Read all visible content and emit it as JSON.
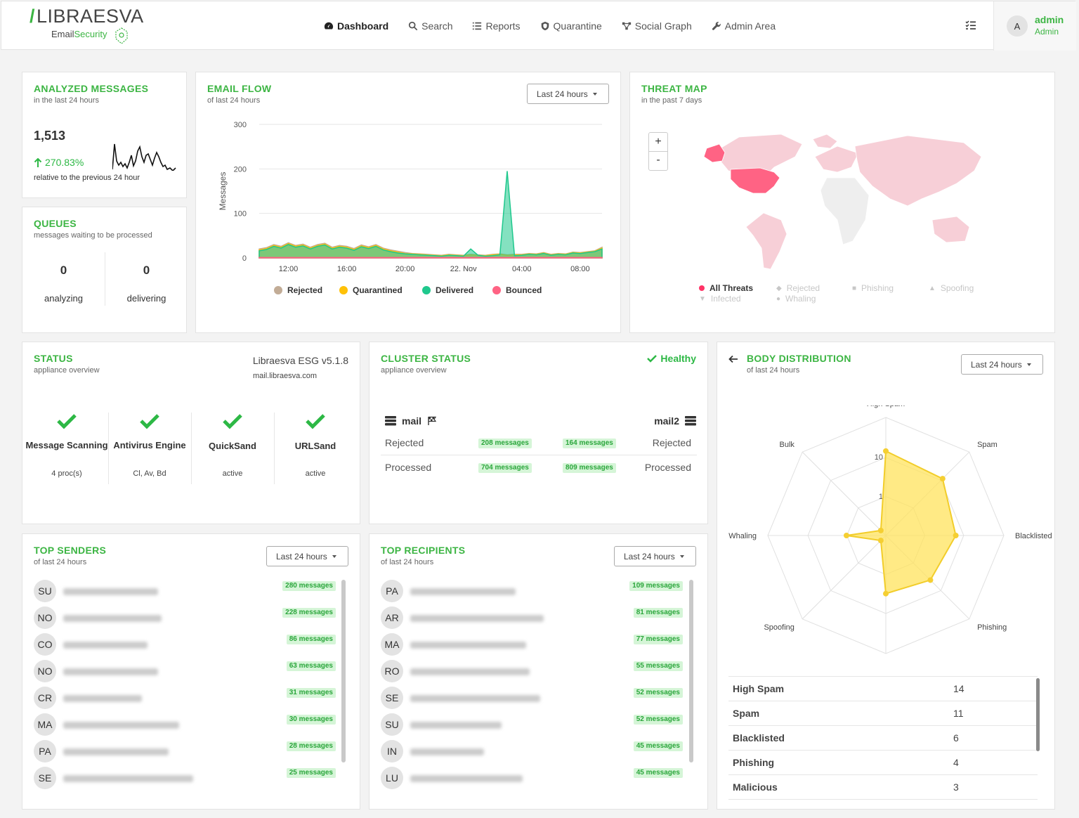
{
  "brand": {
    "name": "LIBRAESVA",
    "sub_a": "Email",
    "sub_b": "Security"
  },
  "nav": [
    {
      "label": "Dashboard",
      "icon": "dashboard-icon",
      "active": true
    },
    {
      "label": "Search",
      "icon": "search-icon"
    },
    {
      "label": "Reports",
      "icon": "list-icon"
    },
    {
      "label": "Quarantine",
      "icon": "shield-icon"
    },
    {
      "label": "Social Graph",
      "icon": "graph-icon"
    },
    {
      "label": "Admin Area",
      "icon": "wrench-icon"
    }
  ],
  "user": {
    "initial": "A",
    "name": "admin",
    "role": "Admin"
  },
  "analyzed": {
    "title": "ANALYZED MESSAGES",
    "subtitle": "in the last 24 hours",
    "count": "1,513",
    "change": "270.83%",
    "relative": "relative to the previous 24 hour"
  },
  "queues": {
    "title": "QUEUES",
    "subtitle": "messages waiting to be processed",
    "analyzing_value": "0",
    "analyzing_label": "analyzing",
    "delivering_value": "0",
    "delivering_label": "delivering"
  },
  "email_flow": {
    "title": "EMAIL FLOW",
    "subtitle": "of last 24 hours",
    "range": "Last 24 hours"
  },
  "chart_data": {
    "type": "area",
    "title": "EMAIL FLOW",
    "ylabel": "Messages",
    "xlabel": "",
    "ylim": [
      0,
      300
    ],
    "yticks": [
      0,
      100,
      200,
      300
    ],
    "xticks": [
      "12:00",
      "16:00",
      "20:00",
      "22. Nov",
      "04:00",
      "08:00"
    ],
    "x": [
      "10:00",
      "10:30",
      "11:00",
      "11:30",
      "12:00",
      "12:30",
      "13:00",
      "13:30",
      "14:00",
      "14:30",
      "15:00",
      "15:30",
      "16:00",
      "16:30",
      "17:00",
      "17:30",
      "18:00",
      "18:30",
      "19:00",
      "19:30",
      "20:00",
      "20:30",
      "21:00",
      "21:30",
      "22:00",
      "22:30",
      "23:00",
      "23:30",
      "00:00",
      "00:30",
      "01:00",
      "01:30",
      "02:00",
      "02:30",
      "03:00",
      "03:30",
      "04:00",
      "04:30",
      "05:00",
      "05:30",
      "06:00",
      "06:30",
      "07:00",
      "07:30",
      "08:00",
      "08:30",
      "09:00",
      "09:30"
    ],
    "series": [
      {
        "name": "Rejected",
        "color": "#c2ac96",
        "values": [
          20,
          23,
          30,
          26,
          34,
          28,
          31,
          24,
          30,
          33,
          24,
          28,
          26,
          21,
          29,
          25,
          30,
          22,
          18,
          15,
          12,
          10,
          9,
          8,
          7,
          6,
          8,
          7,
          6,
          8,
          7,
          6,
          8,
          9,
          7,
          8,
          8,
          10,
          9,
          12,
          8,
          10,
          9,
          13,
          12,
          14,
          16,
          24
        ]
      },
      {
        "name": "Quarantined",
        "color": "#ffc107",
        "values": [
          18,
          21,
          28,
          24,
          32,
          26,
          29,
          22,
          28,
          31,
          22,
          26,
          24,
          19,
          27,
          23,
          28,
          20,
          16,
          13,
          10,
          9,
          8,
          7,
          6,
          5,
          7,
          6,
          5,
          7,
          6,
          5,
          7,
          8,
          6,
          7,
          7,
          9,
          8,
          11,
          7,
          9,
          8,
          12,
          11,
          13,
          15,
          22
        ]
      },
      {
        "name": "Delivered",
        "color": "#1fc88d",
        "values": [
          16,
          19,
          26,
          22,
          30,
          24,
          27,
          20,
          26,
          29,
          20,
          24,
          22,
          17,
          25,
          21,
          26,
          18,
          14,
          11,
          9,
          8,
          7,
          6,
          5,
          4,
          6,
          5,
          4,
          20,
          6,
          4,
          5,
          7,
          195,
          5,
          6,
          8,
          7,
          10,
          6,
          8,
          7,
          11,
          10,
          12,
          14,
          20
        ]
      },
      {
        "name": "Bounced",
        "color": "#ff6384",
        "values": [
          1,
          1,
          1,
          1,
          1,
          1,
          1,
          1,
          1,
          1,
          1,
          1,
          1,
          1,
          1,
          1,
          1,
          1,
          1,
          1,
          1,
          1,
          1,
          1,
          1,
          1,
          1,
          1,
          1,
          1,
          1,
          1,
          1,
          1,
          1,
          1,
          1,
          1,
          1,
          1,
          1,
          1,
          1,
          1,
          1,
          1,
          1,
          1
        ]
      }
    ]
  },
  "threat_map": {
    "title": "THREAT MAP",
    "subtitle": "in the past 7 days",
    "zoom_in": "+",
    "zoom_out": "-",
    "legend": [
      {
        "label": "All Threats",
        "active": true,
        "icon": "circle-icon"
      },
      {
        "label": "Rejected",
        "icon": "diamond-icon"
      },
      {
        "label": "Phishing",
        "icon": "square-icon"
      },
      {
        "label": "Spoofing",
        "icon": "triangle-icon"
      },
      {
        "label": "Infected",
        "icon": "triangle-down-icon"
      },
      {
        "label": "Whaling",
        "icon": "circle-icon"
      }
    ]
  },
  "status": {
    "title": "STATUS",
    "subtitle": "appliance overview",
    "version": "Libraesva ESG v5.1.8",
    "host": "mail.libraesva.com",
    "items": [
      {
        "label": "Message Scanning",
        "value": "4 proc(s)"
      },
      {
        "label": "Antivirus Engine",
        "value": "Cl, Av, Bd"
      },
      {
        "label": "QuickSand",
        "value": "active"
      },
      {
        "label": "URLSand",
        "value": "active"
      }
    ]
  },
  "cluster": {
    "title": "CLUSTER STATUS",
    "subtitle": "appliance overview",
    "health": "Healthy",
    "node1": "mail",
    "node2": "mail2",
    "rows": [
      {
        "label": "Rejected",
        "left": "208 messages",
        "right": "164 messages"
      },
      {
        "label": "Processed",
        "left": "704 messages",
        "right": "809 messages"
      }
    ]
  },
  "body_dist": {
    "title": "BODY DISTRIBUTION",
    "subtitle": "of last 24 hours",
    "range": "Last 24 hours",
    "axes": [
      "High Spam",
      "Spam",
      "Blacklisted",
      "Phishing",
      "Malicious",
      "Spoofing",
      "Whaling",
      "Bulk"
    ],
    "values": [
      14,
      11,
      6,
      4,
      3,
      0,
      1,
      0
    ],
    "scale_labels": [
      "10",
      "1"
    ],
    "table": [
      {
        "label": "High Spam",
        "value": "14"
      },
      {
        "label": "Spam",
        "value": "11"
      },
      {
        "label": "Blacklisted",
        "value": "6"
      },
      {
        "label": "Phishing",
        "value": "4"
      },
      {
        "label": "Malicious",
        "value": "3"
      }
    ]
  },
  "top_senders": {
    "title": "TOP SENDERS",
    "subtitle": "of last 24 hours",
    "range": "Last 24 hours",
    "rows": [
      {
        "initials": "SU",
        "count": "280 messages"
      },
      {
        "initials": "NO",
        "count": "228 messages"
      },
      {
        "initials": "CO",
        "count": "86 messages"
      },
      {
        "initials": "NO",
        "count": "63 messages"
      },
      {
        "initials": "CR",
        "count": "31 messages"
      },
      {
        "initials": "MA",
        "count": "30 messages"
      },
      {
        "initials": "PA",
        "count": "28 messages"
      },
      {
        "initials": "SE",
        "count": "25 messages"
      }
    ]
  },
  "top_recipients": {
    "title": "TOP RECIPIENTS",
    "subtitle": "of last 24 hours",
    "range": "Last 24 hours",
    "rows": [
      {
        "initials": "PA",
        "count": "109 messages"
      },
      {
        "initials": "AR",
        "count": "81 messages"
      },
      {
        "initials": "MA",
        "count": "77 messages"
      },
      {
        "initials": "RO",
        "count": "55 messages"
      },
      {
        "initials": "SE",
        "count": "52 messages"
      },
      {
        "initials": "SU",
        "count": "52 messages"
      },
      {
        "initials": "IN",
        "count": "45 messages"
      },
      {
        "initials": "LU",
        "count": "45 messages"
      }
    ]
  }
}
